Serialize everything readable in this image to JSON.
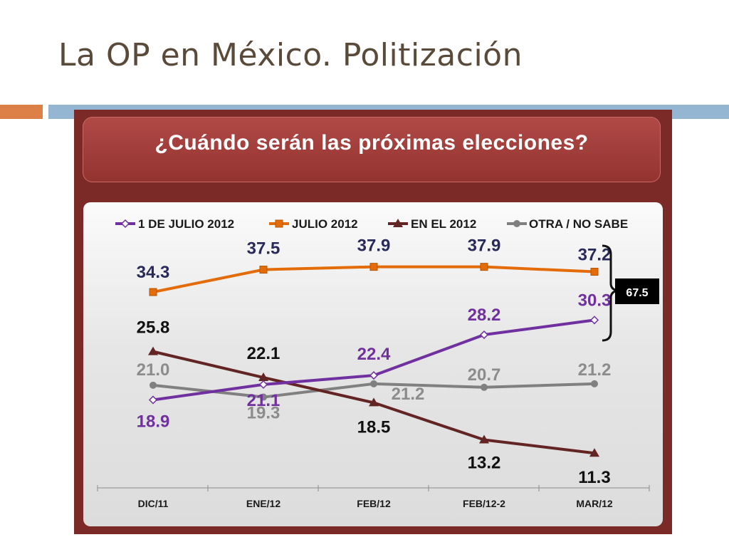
{
  "slide": {
    "title": "La OP en México. Politización"
  },
  "colors": {
    "title_text": "#5a4a3a",
    "accent_orange_bar": "#dd8047",
    "accent_blue_bar": "#94b6d2",
    "frame": "#7b2a28",
    "banner": "#a43f3c"
  },
  "chart_data": {
    "type": "line",
    "title": "¿Cuándo serán las próximas elecciones?",
    "categories": [
      "DIC/11",
      "ENE/12",
      "FEB/12",
      "FEB/12-2",
      "MAR/12"
    ],
    "ylim": [
      0,
      45
    ],
    "grid": false,
    "legend_position": "top",
    "series": [
      {
        "name": "1 DE JULIO 2012",
        "color": "#7030a0",
        "marker": "diamond",
        "values": [
          18.9,
          21.1,
          22.4,
          28.2,
          30.3
        ],
        "labels": [
          "18.9",
          "21.1",
          "22.4",
          "28.2",
          "30.3"
        ]
      },
      {
        "name": "JULIO 2012",
        "color": "#e36c09",
        "marker": "square",
        "values": [
          34.3,
          37.5,
          37.9,
          37.9,
          37.2
        ],
        "labels": [
          "34.3",
          "37.5",
          "37.9",
          "37.9",
          "37.2"
        ]
      },
      {
        "name": "EN EL 2012",
        "color": "#632523",
        "marker": "triangle",
        "values": [
          25.8,
          22.1,
          18.5,
          13.2,
          11.3
        ],
        "labels": [
          "25.8",
          "22.1",
          "18.5",
          "13.2",
          "11.3"
        ]
      },
      {
        "name": "OTRA / NO SABE",
        "color": "#808080",
        "marker": "circle",
        "values": [
          21.0,
          19.3,
          21.2,
          20.7,
          21.2
        ],
        "labels": [
          "21.0",
          "19.3",
          "21.2",
          "20.7",
          "21.2"
        ]
      }
    ],
    "annotation": {
      "text": "67.5"
    }
  }
}
